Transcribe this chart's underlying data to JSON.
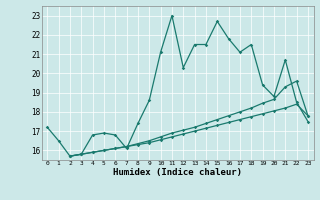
{
  "background_color": "#cce8e8",
  "line_color": "#1a7a6e",
  "xlabel": "Humidex (Indice chaleur)",
  "xlim": [
    -0.5,
    23.5
  ],
  "ylim": [
    15.5,
    23.5
  ],
  "yticks": [
    16,
    17,
    18,
    19,
    20,
    21,
    22,
    23
  ],
  "xticks": [
    0,
    1,
    2,
    3,
    4,
    5,
    6,
    7,
    8,
    9,
    10,
    11,
    12,
    13,
    14,
    15,
    16,
    17,
    18,
    19,
    20,
    21,
    22,
    23
  ],
  "series1_x": [
    0,
    1,
    2,
    3,
    4,
    5,
    6,
    7,
    8,
    9,
    10,
    11,
    12,
    13,
    14,
    15,
    16,
    17,
    18,
    19,
    20,
    21,
    22,
    23
  ],
  "series1_y": [
    17.2,
    16.5,
    15.7,
    15.8,
    16.8,
    16.9,
    16.8,
    16.1,
    17.4,
    18.6,
    21.1,
    23.0,
    20.3,
    21.5,
    21.5,
    22.7,
    21.8,
    21.1,
    21.5,
    19.4,
    18.8,
    20.7,
    18.5,
    17.5
  ],
  "series2_x": [
    2,
    3,
    4,
    5,
    6,
    7,
    8,
    9,
    10,
    11,
    12,
    13,
    14,
    15,
    16,
    17,
    18,
    19,
    20,
    21,
    22,
    23
  ],
  "series2_y": [
    15.7,
    15.8,
    15.9,
    16.0,
    16.1,
    16.2,
    16.35,
    16.5,
    16.7,
    16.9,
    17.05,
    17.2,
    17.4,
    17.6,
    17.8,
    18.0,
    18.2,
    18.45,
    18.65,
    19.3,
    19.6,
    17.8
  ],
  "series3_x": [
    2,
    3,
    4,
    5,
    6,
    7,
    8,
    9,
    10,
    11,
    12,
    13,
    14,
    15,
    16,
    17,
    18,
    19,
    20,
    21,
    22,
    23
  ],
  "series3_y": [
    15.7,
    15.8,
    15.9,
    16.0,
    16.1,
    16.2,
    16.3,
    16.4,
    16.55,
    16.7,
    16.85,
    17.0,
    17.15,
    17.3,
    17.45,
    17.6,
    17.75,
    17.9,
    18.05,
    18.2,
    18.4,
    17.8
  ]
}
